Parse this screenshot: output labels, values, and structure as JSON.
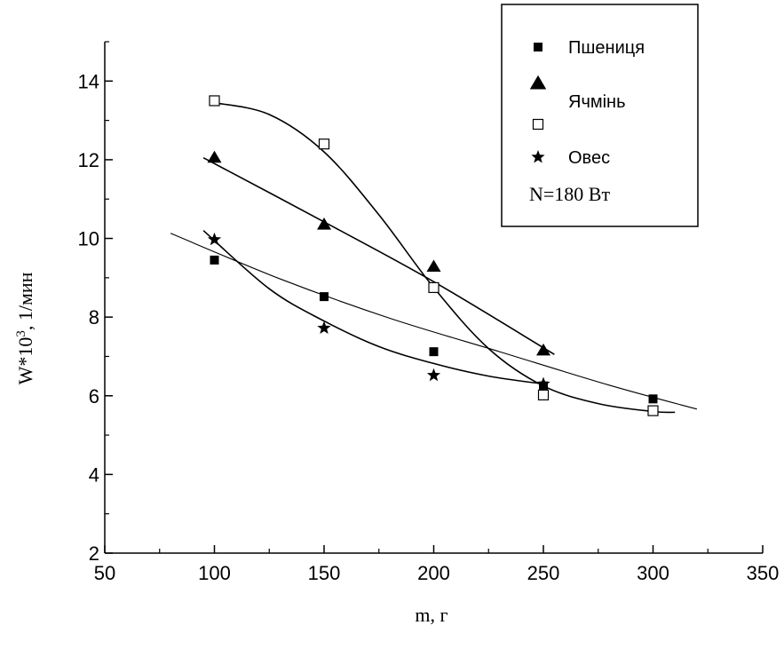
{
  "chart_data": {
    "type": "scatter",
    "xlabel": "m, г",
    "ylabel": "W*10",
    "ylabel_sup": "3",
    "ylabel_unit": ", 1/мин",
    "xlim": [
      50,
      350
    ],
    "ylim": [
      2,
      15
    ],
    "x_ticks": [
      50,
      100,
      150,
      200,
      250,
      300,
      350
    ],
    "y_ticks": [
      2,
      4,
      6,
      8,
      10,
      12,
      14
    ],
    "grid": false,
    "legend_position": "top-right",
    "legend_note": "N=180 Вт",
    "series": [
      {
        "name": "Пшениця",
        "marker": "filled-square",
        "x": [
          100,
          150,
          200,
          250,
          300
        ],
        "y": [
          9.45,
          8.52,
          7.12,
          6.25,
          5.92
        ],
        "fit": {
          "x": [
            80,
            130,
            180,
            230,
            280,
            320
          ],
          "y": [
            10.13,
            8.97,
            7.97,
            7.12,
            6.27,
            5.66
          ]
        }
      },
      {
        "name": "Ячмінь",
        "marker": "filled-triangle",
        "x": [
          100,
          150,
          200,
          250
        ],
        "y": [
          12.05,
          10.35,
          9.28,
          7.15
        ],
        "fit": {
          "x": [
            95,
            150,
            200,
            255
          ],
          "y": [
            12.05,
            10.42,
            8.9,
            7.05
          ]
        }
      },
      {
        "name": "",
        "marker": "open-square",
        "x": [
          100,
          150,
          200,
          250,
          300
        ],
        "y": [
          13.5,
          12.4,
          8.75,
          6.02,
          5.62
        ],
        "fit": {
          "x": [
            100,
            125,
            150,
            175,
            200,
            225,
            250,
            275,
            300,
            310
          ],
          "y": [
            13.45,
            13.15,
            12.2,
            10.6,
            8.75,
            7.2,
            6.25,
            5.8,
            5.6,
            5.58
          ]
        }
      },
      {
        "name": "Овес",
        "marker": "filled-star",
        "x": [
          100,
          150,
          200,
          250
        ],
        "y": [
          9.97,
          7.72,
          6.52,
          6.3
        ],
        "fit": {
          "x": [
            95,
            125,
            150,
            175,
            200,
            225,
            250
          ],
          "y": [
            10.2,
            8.72,
            7.9,
            7.25,
            6.82,
            6.5,
            6.3
          ]
        }
      }
    ],
    "legend_entries": [
      {
        "label": "Пшениця",
        "marker": "filled-square"
      },
      {
        "label": "Ячмінь",
        "marker": "filled-triangle"
      },
      {
        "label": "",
        "marker": "open-square"
      },
      {
        "label": "Овес",
        "marker": "filled-star"
      }
    ]
  }
}
